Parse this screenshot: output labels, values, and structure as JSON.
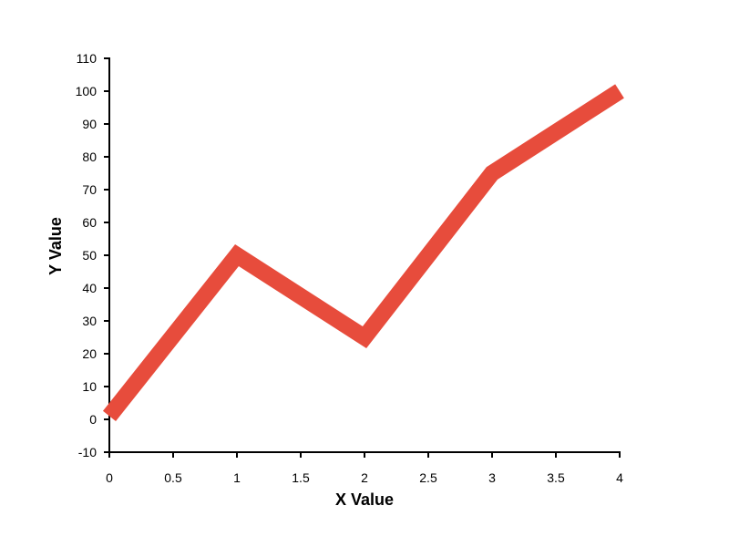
{
  "chart_data": {
    "type": "line",
    "title": "",
    "xlabel": "X Value",
    "ylabel": "Y Value",
    "xlim": [
      0,
      4
    ],
    "ylim": [
      -10,
      110
    ],
    "x_ticks": [
      0,
      0.5,
      1,
      1.5,
      2,
      2.5,
      3,
      3.5,
      4
    ],
    "x_tick_labels": [
      "0",
      "0.5",
      "1",
      "1.5",
      "2",
      "2.5",
      "3",
      "3.5",
      "4"
    ],
    "y_ticks": [
      -10,
      0,
      10,
      20,
      30,
      40,
      50,
      60,
      70,
      80,
      90,
      100,
      110
    ],
    "y_tick_labels": [
      "-10",
      "0",
      "10",
      "20",
      "30",
      "40",
      "50",
      "60",
      "70",
      "80",
      "90",
      "100",
      "110"
    ],
    "grid": false,
    "legend": "none",
    "series": [
      {
        "x": [
          0,
          1,
          2,
          3,
          4
        ],
        "values": [
          1,
          50,
          25,
          75,
          100
        ],
        "color": "#e74c3c"
      }
    ]
  }
}
